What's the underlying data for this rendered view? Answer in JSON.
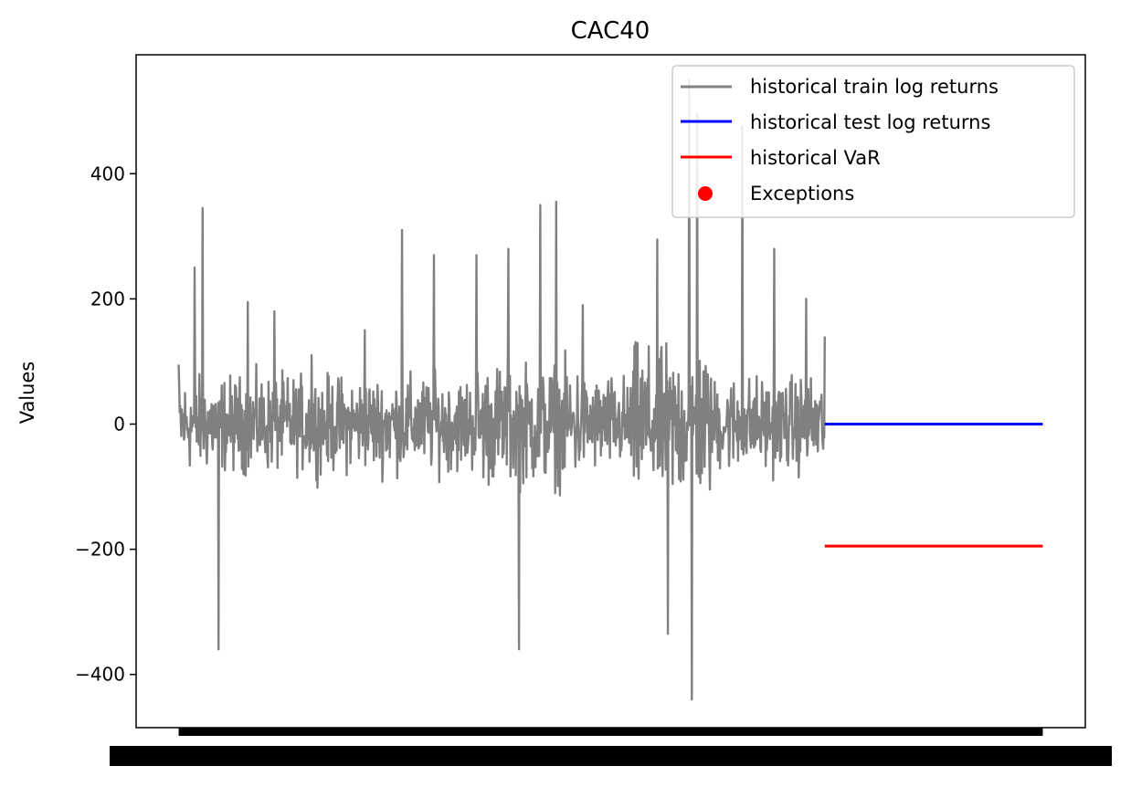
{
  "chart_data": {
    "type": "line",
    "title": "CAC40",
    "xlabel": "",
    "ylabel": "Values",
    "ylim": [
      -485,
      590
    ],
    "y_ticks": [
      -400,
      -200,
      0,
      200,
      400
    ],
    "y_tick_labels": [
      "−400",
      "−200",
      "0",
      "200",
      "400"
    ],
    "legend_position": "top-right",
    "grid": false,
    "x_tick_labels_overlapping": true,
    "series": [
      {
        "name": "historical train log returns",
        "color": "#808080",
        "kind": "line",
        "description_points": [
          {
            "x": 0,
            "y": 95
          },
          {
            "x": 30,
            "y": 250
          },
          {
            "x": 45,
            "y": 345
          },
          {
            "x": 75,
            "y": -360
          },
          {
            "x": 130,
            "y": 195
          },
          {
            "x": 180,
            "y": 180
          },
          {
            "x": 250,
            "y": 110
          },
          {
            "x": 350,
            "y": 150
          },
          {
            "x": 420,
            "y": 310
          },
          {
            "x": 480,
            "y": 270
          },
          {
            "x": 560,
            "y": 270
          },
          {
            "x": 620,
            "y": 280
          },
          {
            "x": 640,
            "y": -360
          },
          {
            "x": 680,
            "y": 350
          },
          {
            "x": 710,
            "y": 355
          },
          {
            "x": 760,
            "y": 190
          },
          {
            "x": 900,
            "y": 295
          },
          {
            "x": 920,
            "y": -335
          },
          {
            "x": 960,
            "y": 550
          },
          {
            "x": 965,
            "y": -440
          },
          {
            "x": 975,
            "y": 495
          },
          {
            "x": 1060,
            "y": 475
          },
          {
            "x": 1120,
            "y": 280
          },
          {
            "x": 1180,
            "y": 200
          },
          {
            "x": 1215,
            "y": 140
          }
        ],
        "n_points": 1215,
        "index_range": [
          0,
          1215
        ]
      },
      {
        "name": "historical test log returns",
        "color": "#0000ff",
        "kind": "line",
        "x": [
          1215,
          1625
        ],
        "y": [
          0,
          0
        ]
      },
      {
        "name": "historical VaR",
        "color": "#ff0000",
        "kind": "line",
        "x": [
          1215,
          1625
        ],
        "y": [
          -195,
          -195
        ]
      },
      {
        "name": "Exceptions",
        "color": "#ff0000",
        "kind": "scatter",
        "x": [],
        "y": []
      }
    ],
    "xlim": [
      -80,
      1705
    ]
  }
}
